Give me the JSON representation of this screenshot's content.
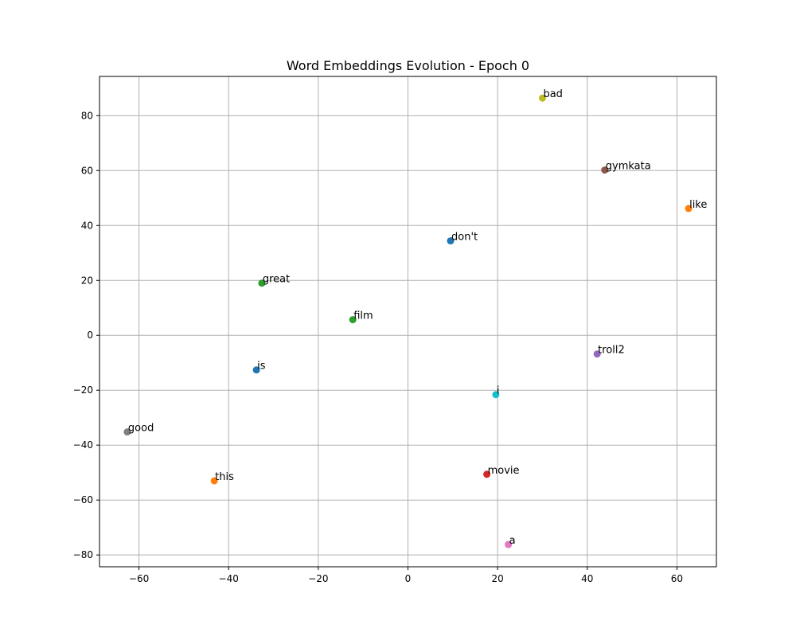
{
  "chart_data": {
    "type": "scatter",
    "title": "Word Embeddings Evolution - Epoch 0",
    "xlabel": "",
    "ylabel": "",
    "xlim": [
      -68.8,
      68.8
    ],
    "ylim": [
      -84.3,
      94.3
    ],
    "grid": true,
    "xticks": [
      -60,
      -40,
      -20,
      0,
      20,
      40,
      60
    ],
    "yticks": [
      -80,
      -60,
      -40,
      -20,
      0,
      20,
      40,
      60,
      80
    ],
    "xtick_labels": [
      "−60",
      "−40",
      "−20",
      "0",
      "20",
      "40",
      "60"
    ],
    "ytick_labels": [
      "−80",
      "−60",
      "−40",
      "−20",
      "0",
      "20",
      "40",
      "60",
      "80"
    ],
    "points": [
      {
        "label": "bad",
        "x": 30.0,
        "y": 86.4,
        "color": "#bcbd22"
      },
      {
        "label": "gymkata",
        "x": 43.9,
        "y": 60.2,
        "color": "#8c564b"
      },
      {
        "label": "like",
        "x": 62.6,
        "y": 46.2,
        "color": "#ff7f0e"
      },
      {
        "label": "don't",
        "x": 9.5,
        "y": 34.4,
        "color": "#1f77b4"
      },
      {
        "label": "great",
        "x": -32.6,
        "y": 19.0,
        "color": "#2ca02c"
      },
      {
        "label": "film",
        "x": -12.3,
        "y": 5.7,
        "color": "#2ca02c"
      },
      {
        "label": "troll2",
        "x": 42.2,
        "y": -6.8,
        "color": "#9467bd"
      },
      {
        "label": "is",
        "x": -33.8,
        "y": -12.6,
        "color": "#1f77b4"
      },
      {
        "label": "i",
        "x": 19.6,
        "y": -21.6,
        "color": "#17becf"
      },
      {
        "label": "good",
        "x": -62.6,
        "y": -35.2,
        "color": "#7f7f7f"
      },
      {
        "label": "this",
        "x": -43.2,
        "y": -53.0,
        "color": "#ff7f0e"
      },
      {
        "label": "movie",
        "x": 17.6,
        "y": -50.6,
        "color": "#d62728"
      },
      {
        "label": "a",
        "x": 22.4,
        "y": -76.2,
        "color": "#e377c2"
      }
    ]
  }
}
